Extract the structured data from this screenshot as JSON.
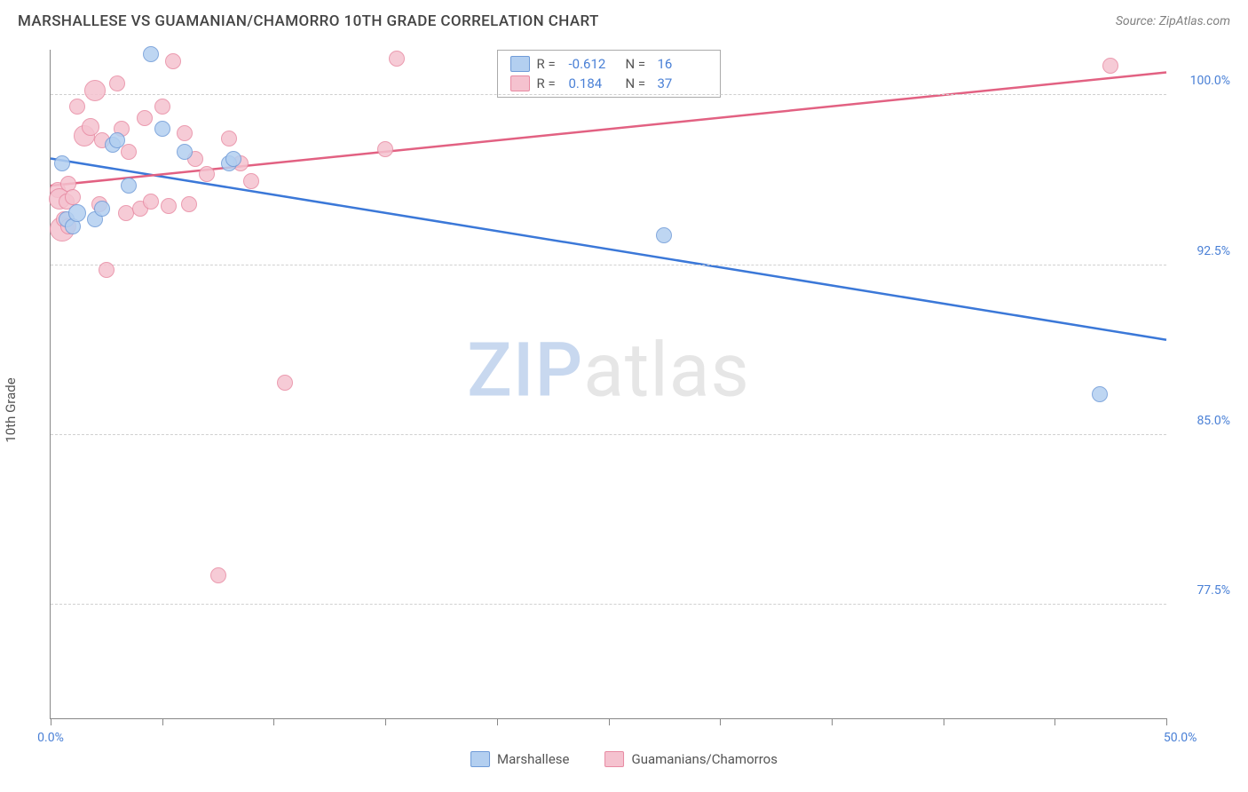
{
  "header": {
    "title": "MARSHALLESE VS GUAMANIAN/CHAMORRO 10TH GRADE CORRELATION CHART",
    "source_prefix": "Source: ",
    "source_name": "ZipAtlas.com"
  },
  "watermark": {
    "part1": "ZIP",
    "part2": "atlas"
  },
  "chart": {
    "type": "scatter",
    "background_color": "#ffffff",
    "grid_color": "#d0d0d0",
    "axis_color": "#888888",
    "tick_label_color": "#4a80d6",
    "y_axis_label": "10th Grade",
    "xlim": [
      0,
      50
    ],
    "ylim": [
      72.5,
      102.0
    ],
    "x_ticks": [
      0,
      5,
      10,
      15,
      20,
      25,
      30,
      35,
      40,
      45,
      50
    ],
    "x_tick_labels": {
      "0": "0.0%",
      "50": "50.0%"
    },
    "y_ticks": [
      77.5,
      85.0,
      92.5,
      100.0
    ],
    "y_tick_labels": [
      "77.5%",
      "85.0%",
      "92.5%",
      "100.0%"
    ],
    "series": {
      "marshallese": {
        "label": "Marshallese",
        "fill": "#b3cff0",
        "stroke": "#6f9bd8",
        "line_color": "#3b78d8",
        "R": "-0.612",
        "N": "16",
        "marker_radius": 9,
        "trend": {
          "x1": 0,
          "y1": 97.2,
          "x2": 50,
          "y2": 89.2
        },
        "points": [
          {
            "x": 0.5,
            "y": 97.0,
            "r": 9
          },
          {
            "x": 0.7,
            "y": 94.5,
            "r": 9
          },
          {
            "x": 1.0,
            "y": 94.2,
            "r": 9
          },
          {
            "x": 1.2,
            "y": 94.8,
            "r": 10
          },
          {
            "x": 2.0,
            "y": 94.5,
            "r": 9
          },
          {
            "x": 2.3,
            "y": 95.0,
            "r": 9
          },
          {
            "x": 2.8,
            "y": 97.8,
            "r": 9
          },
          {
            "x": 3.0,
            "y": 98.0,
            "r": 9
          },
          {
            "x": 3.5,
            "y": 96.0,
            "r": 9
          },
          {
            "x": 4.5,
            "y": 101.8,
            "r": 9
          },
          {
            "x": 5.0,
            "y": 98.5,
            "r": 9
          },
          {
            "x": 6.0,
            "y": 97.5,
            "r": 9
          },
          {
            "x": 8.0,
            "y": 97.0,
            "r": 9
          },
          {
            "x": 8.2,
            "y": 97.2,
            "r": 9
          },
          {
            "x": 27.5,
            "y": 93.8,
            "r": 9
          },
          {
            "x": 47.0,
            "y": 86.8,
            "r": 9
          }
        ]
      },
      "guamanians": {
        "label": "Guamanians/Chamorros",
        "fill": "#f5c2cf",
        "stroke": "#e88ba3",
        "line_color": "#e26182",
        "R": "0.184",
        "N": "37",
        "marker_radius": 9,
        "trend": {
          "x1": 0,
          "y1": 96.0,
          "x2": 50,
          "y2": 101.0
        },
        "points": [
          {
            "x": 0.3,
            "y": 95.8,
            "r": 9
          },
          {
            "x": 0.4,
            "y": 95.4,
            "r": 12
          },
          {
            "x": 0.5,
            "y": 94.1,
            "r": 14
          },
          {
            "x": 0.6,
            "y": 94.5,
            "r": 9
          },
          {
            "x": 0.7,
            "y": 95.3,
            "r": 9
          },
          {
            "x": 0.8,
            "y": 96.1,
            "r": 9
          },
          {
            "x": 0.8,
            "y": 94.2,
            "r": 9
          },
          {
            "x": 1.0,
            "y": 95.5,
            "r": 9
          },
          {
            "x": 1.2,
            "y": 99.5,
            "r": 9
          },
          {
            "x": 1.5,
            "y": 98.2,
            "r": 12
          },
          {
            "x": 1.8,
            "y": 98.6,
            "r": 10
          },
          {
            "x": 2.0,
            "y": 100.2,
            "r": 12
          },
          {
            "x": 2.2,
            "y": 95.2,
            "r": 9
          },
          {
            "x": 2.3,
            "y": 98.0,
            "r": 9
          },
          {
            "x": 2.5,
            "y": 92.3,
            "r": 9
          },
          {
            "x": 3.0,
            "y": 100.5,
            "r": 9
          },
          {
            "x": 3.2,
            "y": 98.5,
            "r": 9
          },
          {
            "x": 3.4,
            "y": 94.8,
            "r": 9
          },
          {
            "x": 3.5,
            "y": 97.5,
            "r": 9
          },
          {
            "x": 4.0,
            "y": 95.0,
            "r": 9
          },
          {
            "x": 4.2,
            "y": 99.0,
            "r": 9
          },
          {
            "x": 4.5,
            "y": 95.3,
            "r": 9
          },
          {
            "x": 5.0,
            "y": 99.5,
            "r": 9
          },
          {
            "x": 5.3,
            "y": 95.1,
            "r": 9
          },
          {
            "x": 5.5,
            "y": 101.5,
            "r": 9
          },
          {
            "x": 6.0,
            "y": 98.3,
            "r": 9
          },
          {
            "x": 6.2,
            "y": 95.2,
            "r": 9
          },
          {
            "x": 6.5,
            "y": 97.2,
            "r": 9
          },
          {
            "x": 7.0,
            "y": 96.5,
            "r": 9
          },
          {
            "x": 7.5,
            "y": 78.8,
            "r": 9
          },
          {
            "x": 8.0,
            "y": 98.1,
            "r": 9
          },
          {
            "x": 8.5,
            "y": 97.0,
            "r": 9
          },
          {
            "x": 9.0,
            "y": 96.2,
            "r": 9
          },
          {
            "x": 10.5,
            "y": 87.3,
            "r": 9
          },
          {
            "x": 15.0,
            "y": 97.6,
            "r": 9
          },
          {
            "x": 15.5,
            "y": 101.6,
            "r": 9
          },
          {
            "x": 47.5,
            "y": 101.3,
            "r": 9
          }
        ]
      }
    }
  },
  "legend_box": {
    "r_label": "R =",
    "n_label": "N ="
  }
}
